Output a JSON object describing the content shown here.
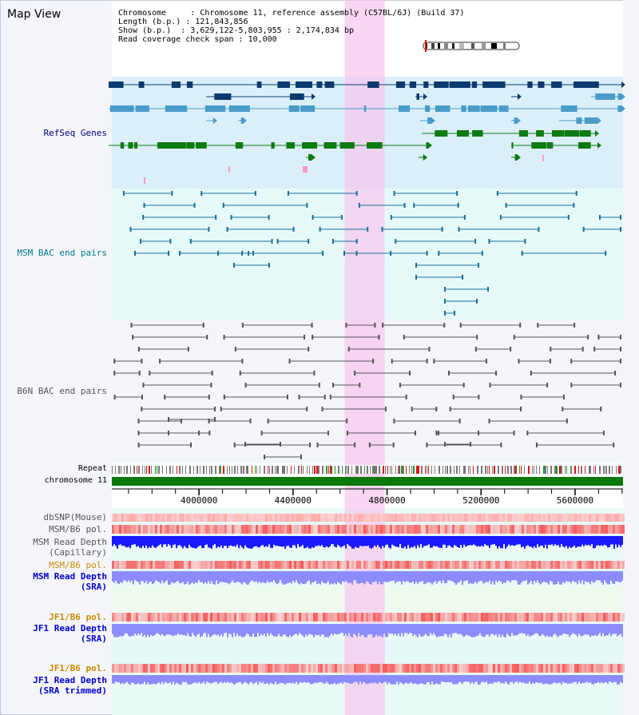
{
  "page_title": "Map View",
  "info": {
    "chromosome": "Chromosome     : Chromosome 11, reference assembly (C57BL/6J) (Build 37)",
    "length": "Length (b.p.) : 121,843,856",
    "show": "Show (b.p.)  : 3,629,122-5,803,955 : 2,174,834 bp",
    "coverage": "Read coverage check span : 10,000"
  },
  "tracks": {
    "refseq": "RefSeq Genes",
    "msm_bac": "MSM BAC end pairs",
    "b6n_bac": "B6N BAC end pairs",
    "repeat": "Repeat",
    "chromosome": "chromosome 11",
    "dbsnp": "dbSNP(Mouse)",
    "msm_b6_pol": "MSM/B6 pol.",
    "msm_depth_cap_1": "MSM Read Depth",
    "msm_depth_cap_2": "(Capillary)",
    "msm_b6_pol2": "MSM/B6 pol.",
    "msm_depth_sra_1": "MSM Read Depth",
    "msm_depth_sra_2": "(SRA)",
    "jf1_pol": "JF1/B6 pol.",
    "jf1_depth_1": "JF1 Read Depth",
    "jf1_depth_2": "(SRA)",
    "jf1_pol2": "JF1/B6 pol.",
    "jf1t_depth_1": "JF1 Read Depth",
    "jf1t_depth_2": "(SRA trimmed)"
  },
  "axis": {
    "ticks": [
      {
        "value": 4000000,
        "label": "4000000"
      },
      {
        "value": 4400000,
        "label": "4400000"
      },
      {
        "value": 4800000,
        "label": "4800000"
      },
      {
        "value": 5200000,
        "label": "5200000"
      },
      {
        "value": 5600000,
        "label": "5600000"
      }
    ],
    "view_start": 3629122,
    "view_end": 5803955
  },
  "highlight": {
    "start": 4620000,
    "end": 4790000
  },
  "colors": {
    "refseq_bg": "#dbeffa",
    "msm_bg": "#e6fafa",
    "b6n_bg": "#f4f6fa",
    "highlight": "#f7c6ee",
    "refseq_dark": "#0d3a6e",
    "refseq_mid": "#4a9cc8",
    "refseq_green": "#0e7a12",
    "msm_line": "#1c6d96",
    "b6n_line": "#555555",
    "chromosome_bar": "#0a780a",
    "depth_blue": "#1a1aff",
    "depth_light": "#8c8cff",
    "label_navy": "#00007a",
    "label_teal": "#007a86",
    "label_gray": "#555555",
    "label_orange": "#d08a00",
    "label_blue": "#0000cc"
  }
}
